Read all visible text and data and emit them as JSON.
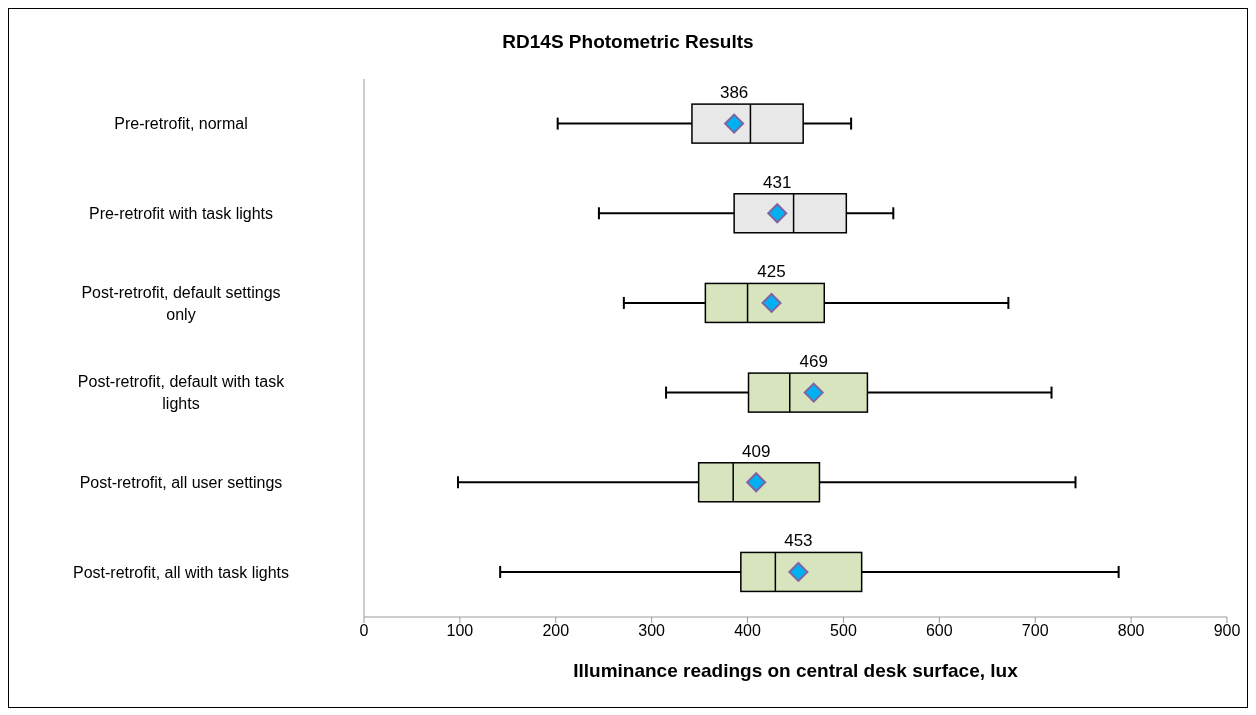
{
  "chart_data": {
    "type": "box",
    "orientation": "horizontal",
    "title": "RD14S Photometric Results",
    "xlabel": "Illuminance readings on central desk surface, lux",
    "categories": [
      "Pre-retrofit, normal",
      "Pre-retrofit with task lights",
      "Post-retrofit, default settings only",
      "Post-retrofit, default with task lights",
      "Post-retrofit, all user settings",
      "Post-retrofit, all with task lights"
    ],
    "boxes": [
      {
        "low": 202,
        "q1": 342,
        "median": 403,
        "q3": 458,
        "high": 508,
        "mean": 386
      },
      {
        "low": 245,
        "q1": 386,
        "median": 448,
        "q3": 503,
        "high": 552,
        "mean": 431
      },
      {
        "low": 271,
        "q1": 356,
        "median": 400,
        "q3": 480,
        "high": 672,
        "mean": 425
      },
      {
        "low": 315,
        "q1": 401,
        "median": 444,
        "q3": 525,
        "high": 717,
        "mean": 469
      },
      {
        "low": 98,
        "q1": 349,
        "median": 385,
        "q3": 475,
        "high": 742,
        "mean": 409
      },
      {
        "low": 142,
        "q1": 393,
        "median": 429,
        "q3": 519,
        "high": 787,
        "mean": 453
      }
    ],
    "colors": [
      "#e8e8e8",
      "#e8e8e8",
      "#d7e4bd",
      "#d7e4bd",
      "#d7e4bd",
      "#d7e4bd"
    ],
    "marker": "diamond",
    "value_labels": [
      "386",
      "431",
      "425",
      "469",
      "409",
      "453"
    ],
    "xlim": [
      0,
      900
    ],
    "xticks": [
      0,
      100,
      200,
      300,
      400,
      500,
      600,
      700,
      800,
      900
    ],
    "grid": false
  }
}
